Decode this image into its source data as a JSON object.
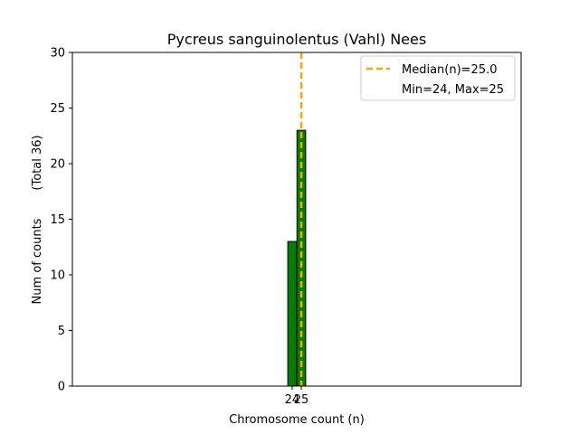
{
  "chart_data": {
    "type": "bar",
    "title": "Pycreus sanguinolentus (Vahl) Nees",
    "xlabel": "Chromosome count (n)",
    "ylabel": "Num of counts",
    "ylabel_total": "(Total 36)",
    "categories": [
      24,
      25
    ],
    "values": [
      13,
      23
    ],
    "xlim": [
      0,
      49
    ],
    "ylim": [
      0,
      30
    ],
    "yticks": [
      0,
      5,
      10,
      15,
      20,
      25,
      30
    ],
    "xticks": [
      24,
      25
    ],
    "median_line": {
      "x": 25.0,
      "label": "Median(n)=25.0"
    },
    "minmax_label": "Min=24, Max=25",
    "legend_position": "top-right",
    "grid": false,
    "bar_color": "#008000",
    "bar_edge_color": "#000000",
    "median_color": "#FFA500"
  }
}
